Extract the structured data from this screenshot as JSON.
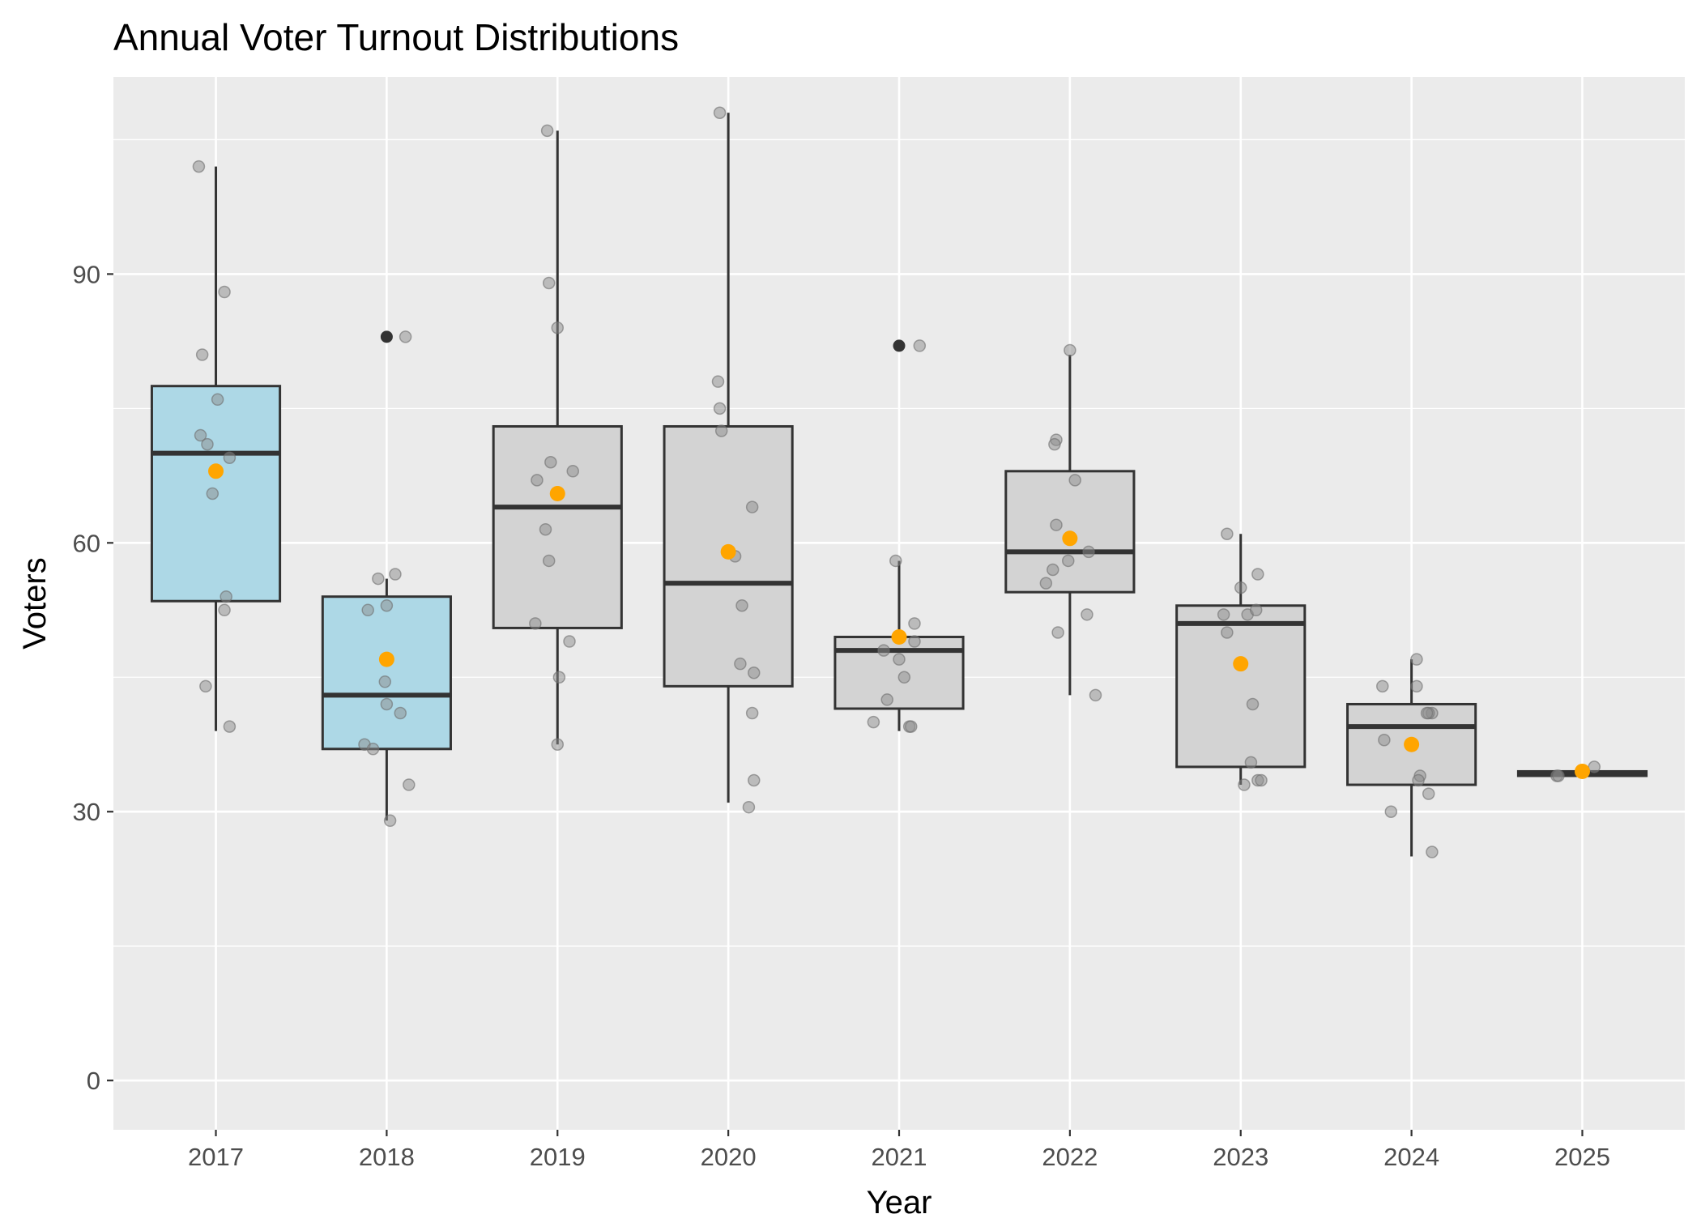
{
  "chart_data": {
    "type": "boxplot",
    "title": "Annual Voter Turnout Distributions",
    "xlabel": "Year",
    "ylabel": "Voters",
    "ylim": [
      -5.5,
      112
    ],
    "yticks": [
      0,
      30,
      60,
      90
    ],
    "grid": true,
    "legend": "none",
    "colors": {
      "panel_background": "#ebebeb",
      "grid": "#ffffff",
      "box_fill_highlight": "#add8e6",
      "box_fill_default": "#d3d3d3",
      "box_outline": "#333333",
      "jitter_point": "#999999",
      "mean_point": "#ffa500",
      "outlier": "#333333"
    },
    "categories": [
      "2017",
      "2018",
      "2019",
      "2020",
      "2021",
      "2022",
      "2023",
      "2024",
      "2025"
    ],
    "boxes": [
      {
        "year": "2017",
        "highlight": true,
        "whisker_low": 39,
        "q1": 53.5,
        "median": 70,
        "q3": 77.5,
        "whisker_high": 102,
        "mean": 68,
        "outliers": [],
        "points": [
          [
            -0.1,
            102
          ],
          [
            0.05,
            88
          ],
          [
            -0.08,
            81
          ],
          [
            0.01,
            76
          ],
          [
            -0.09,
            72
          ],
          [
            -0.05,
            71
          ],
          [
            0.08,
            69.5
          ],
          [
            -0.02,
            65.5
          ],
          [
            0.06,
            54
          ],
          [
            0.05,
            52.5
          ],
          [
            -0.06,
            44
          ],
          [
            0.08,
            39.5
          ]
        ]
      },
      {
        "year": "2018",
        "highlight": true,
        "whisker_low": 29,
        "q1": 37,
        "median": 43,
        "q3": 54,
        "whisker_high": 56,
        "mean": 47,
        "outliers": [
          83
        ],
        "points": [
          [
            0.11,
            83
          ],
          [
            -0.05,
            56
          ],
          [
            0.05,
            56.5
          ],
          [
            -0.11,
            52.5
          ],
          [
            0.0,
            53
          ],
          [
            -0.01,
            44.5
          ],
          [
            0.0,
            42
          ],
          [
            0.08,
            41
          ],
          [
            -0.13,
            37.5
          ],
          [
            -0.08,
            37
          ],
          [
            0.13,
            33
          ],
          [
            0.02,
            29
          ]
        ]
      },
      {
        "year": "2019",
        "highlight": false,
        "whisker_low": 37.5,
        "q1": 50.5,
        "median": 64,
        "q3": 73,
        "whisker_high": 106,
        "mean": 65.5,
        "outliers": [],
        "points": [
          [
            -0.06,
            106
          ],
          [
            -0.05,
            89
          ],
          [
            0.0,
            84
          ],
          [
            -0.04,
            69
          ],
          [
            -0.12,
            67
          ],
          [
            0.09,
            68
          ],
          [
            -0.07,
            61.5
          ],
          [
            -0.05,
            58
          ],
          [
            -0.13,
            51
          ],
          [
            0.07,
            49
          ],
          [
            0.01,
            45
          ],
          [
            0.0,
            37.5
          ]
        ]
      },
      {
        "year": "2020",
        "highlight": false,
        "whisker_low": 31,
        "q1": 44,
        "median": 55.5,
        "q3": 73,
        "whisker_high": 108,
        "mean": 59,
        "outliers": [],
        "points": [
          [
            -0.05,
            108
          ],
          [
            -0.06,
            78
          ],
          [
            -0.05,
            75
          ],
          [
            -0.04,
            72.5
          ],
          [
            0.14,
            64
          ],
          [
            0.04,
            58.5
          ],
          [
            0.08,
            53
          ],
          [
            0.07,
            46.5
          ],
          [
            0.15,
            45.5
          ],
          [
            0.14,
            41
          ],
          [
            0.15,
            33.5
          ],
          [
            0.12,
            30.5
          ]
        ]
      },
      {
        "year": "2021",
        "highlight": false,
        "whisker_low": 39,
        "q1": 41.5,
        "median": 48,
        "q3": 49.5,
        "whisker_high": 58,
        "mean": 49.5,
        "outliers": [
          82
        ],
        "points": [
          [
            0.12,
            82
          ],
          [
            -0.02,
            58
          ],
          [
            0.09,
            51
          ],
          [
            0.09,
            49
          ],
          [
            -0.09,
            48
          ],
          [
            0.0,
            47
          ],
          [
            0.03,
            45
          ],
          [
            -0.07,
            42.5
          ],
          [
            -0.15,
            40
          ],
          [
            0.06,
            39.5
          ],
          [
            0.07,
            39.5
          ]
        ]
      },
      {
        "year": "2022",
        "highlight": false,
        "whisker_low": 43,
        "q1": 54.5,
        "median": 59,
        "q3": 68,
        "whisker_high": 81,
        "mean": 60.5,
        "outliers": [],
        "points": [
          [
            0.0,
            81.5
          ],
          [
            -0.08,
            71.5
          ],
          [
            -0.09,
            71
          ],
          [
            0.03,
            67
          ],
          [
            -0.08,
            62
          ],
          [
            0.11,
            59
          ],
          [
            -0.01,
            58
          ],
          [
            -0.1,
            57
          ],
          [
            -0.14,
            55.5
          ],
          [
            0.1,
            52
          ],
          [
            -0.07,
            50
          ],
          [
            0.15,
            43
          ]
        ]
      },
      {
        "year": "2023",
        "highlight": false,
        "whisker_low": 33,
        "q1": 35,
        "median": 51,
        "q3": 53,
        "whisker_high": 61,
        "mean": 46.5,
        "outliers": [],
        "points": [
          [
            -0.08,
            61
          ],
          [
            0.1,
            56.5
          ],
          [
            0.0,
            55
          ],
          [
            -0.1,
            52
          ],
          [
            0.04,
            52
          ],
          [
            0.09,
            52.5
          ],
          [
            -0.08,
            50
          ],
          [
            0.07,
            42
          ],
          [
            0.06,
            35.5
          ],
          [
            0.1,
            33.5
          ],
          [
            0.12,
            33.5
          ],
          [
            0.02,
            33
          ]
        ]
      },
      {
        "year": "2024",
        "highlight": false,
        "whisker_low": 25,
        "q1": 33,
        "median": 39.5,
        "q3": 42,
        "whisker_high": 47,
        "mean": 37.5,
        "outliers": [],
        "points": [
          [
            0.03,
            47
          ],
          [
            -0.17,
            44
          ],
          [
            0.03,
            44
          ],
          [
            0.12,
            41
          ],
          [
            0.1,
            41
          ],
          [
            0.09,
            41
          ],
          [
            -0.16,
            38
          ],
          [
            0.05,
            34
          ],
          [
            0.04,
            33.5
          ],
          [
            0.1,
            32
          ],
          [
            -0.12,
            30
          ],
          [
            0.12,
            25.5
          ]
        ]
      },
      {
        "year": "2025",
        "highlight": false,
        "whisker_low": 34,
        "q1": 34,
        "median": 34.3,
        "q3": 34.5,
        "whisker_high": 35,
        "mean": 34.5,
        "outliers": [],
        "points": [
          [
            -0.15,
            34
          ],
          [
            -0.14,
            34
          ],
          [
            0.07,
            35
          ]
        ]
      }
    ]
  }
}
